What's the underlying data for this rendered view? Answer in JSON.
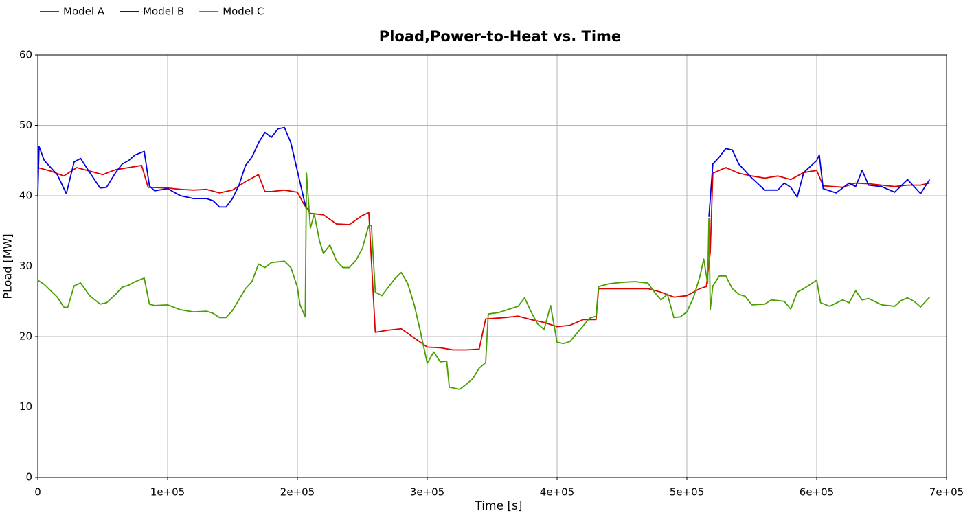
{
  "chart_data": {
    "type": "line",
    "title": "Pload,Power-to-Heat vs. Time",
    "x_label": "Time [s]",
    "y_label": "PLoad [MW]",
    "xlim": [
      0,
      700000
    ],
    "ylim": [
      0,
      60
    ],
    "xticks": [
      0,
      {
        "value": 100000,
        "label": "1e+05"
      },
      {
        "value": 200000,
        "label": "2e+05"
      },
      {
        "value": 300000,
        "label": "3e+05"
      },
      {
        "value": 400000,
        "label": "4e+05"
      },
      {
        "value": 500000,
        "label": "5e+05"
      },
      {
        "value": 600000,
        "label": "6e+05"
      },
      {
        "value": 700000,
        "label": "7e+05"
      }
    ],
    "yticks": [
      0,
      10,
      20,
      30,
      40,
      50,
      60
    ],
    "grid": true,
    "legend": "top-left",
    "series": [
      {
        "name": "Model A",
        "color": "#e00000",
        "x": [
          0,
          10000,
          20000,
          30000,
          40000,
          50000,
          60000,
          70000,
          80000,
          85000,
          100000,
          110000,
          120000,
          130000,
          140000,
          150000,
          160000,
          170000,
          175000,
          180000,
          190000,
          200000,
          205000,
          210000,
          220000,
          230000,
          240000,
          250000,
          255000,
          260000,
          270000,
          280000,
          290000,
          300000,
          310000,
          320000,
          330000,
          340000,
          345000,
          360000,
          370000,
          380000,
          390000,
          400000,
          410000,
          420000,
          430000,
          432000,
          450000,
          470000,
          480000,
          490000,
          500000,
          510000,
          515000,
          518000,
          520000,
          530000,
          540000,
          550000,
          560000,
          570000,
          580000,
          590000,
          600000,
          605000,
          620000,
          630000,
          640000,
          650000,
          660000,
          670000,
          680000,
          687000
        ],
        "values": [
          44,
          43.5,
          42.8,
          44,
          43.5,
          43,
          43.7,
          44,
          44.3,
          41.2,
          41.1,
          40.9,
          40.8,
          40.9,
          40.4,
          40.8,
          42,
          43,
          40.6,
          40.6,
          40.8,
          40.5,
          38.8,
          37.5,
          37.3,
          36,
          35.9,
          37.2,
          37.6,
          20.6,
          20.9,
          21.1,
          19.8,
          18.5,
          18.4,
          18.1,
          18.1,
          18.2,
          22.5,
          22.7,
          22.9,
          22.4,
          22,
          21.4,
          21.6,
          22.4,
          22.4,
          26.8,
          26.8,
          26.8,
          26.3,
          25.6,
          25.8,
          26.8,
          27.1,
          32,
          43.2,
          44,
          43.2,
          42.8,
          42.5,
          42.8,
          42.3,
          43.3,
          43.6,
          41.4,
          41.2,
          41.8,
          41.7,
          41.5,
          41.3,
          41.5,
          41.5,
          41.8
        ]
      },
      {
        "name": "Model B",
        "color": "#0000e0",
        "x": [
          0,
          1000,
          5000,
          15000,
          22000,
          28000,
          33000,
          40000,
          48000,
          53000,
          60000,
          65000,
          70000,
          75000,
          82000,
          86000,
          90000,
          100000,
          110000,
          120000,
          130000,
          135000,
          140000,
          145000,
          150000,
          155000,
          160000,
          165000,
          170000,
          175000,
          180000,
          185000,
          190000,
          195000,
          200000,
          205000,
          207000,
          210000,
          517000,
          520000,
          525000,
          530000,
          535000,
          540000,
          550000,
          560000,
          570000,
          575000,
          580000,
          585000,
          590000,
          600000,
          602000,
          605000,
          615000,
          625000,
          630000,
          635000,
          640000,
          650000,
          660000,
          670000,
          680000,
          687000
        ],
        "values": [
          40,
          47,
          45,
          43,
          40.3,
          44.8,
          45.3,
          43.3,
          41.1,
          41.2,
          43.3,
          44.5,
          45,
          45.8,
          46.3,
          41.4,
          40.7,
          41,
          40,
          39.6,
          39.6,
          39.3,
          38.4,
          38.4,
          39.6,
          41.5,
          44.3,
          45.5,
          47.5,
          49,
          48.3,
          49.5,
          49.7,
          47.5,
          43.5,
          39.5,
          38,
          null,
          37,
          44.5,
          45.5,
          46.7,
          46.5,
          44.5,
          42.5,
          40.8,
          40.8,
          41.8,
          41.2,
          39.8,
          43.3,
          45,
          45.8,
          41,
          40.4,
          41.8,
          41.3,
          43.6,
          41.5,
          41.3,
          40.5,
          42.3,
          40.3,
          42.3
        ]
      },
      {
        "name": "Model C",
        "color": "#4a9e00",
        "x": [
          0,
          5000,
          10000,
          15000,
          20000,
          23000,
          28000,
          33000,
          40000,
          48000,
          53000,
          60000,
          65000,
          70000,
          75000,
          82000,
          86000,
          90000,
          100000,
          110000,
          120000,
          130000,
          135000,
          140000,
          145000,
          150000,
          160000,
          165000,
          170000,
          175000,
          180000,
          190000,
          195000,
          200000,
          202000,
          206000,
          207000,
          210000,
          213000,
          217000,
          220000,
          225000,
          230000,
          235000,
          240000,
          245000,
          250000,
          255000,
          257000,
          260000,
          265000,
          270000,
          275000,
          280000,
          285000,
          290000,
          295000,
          300000,
          305000,
          310000,
          315000,
          317000,
          325000,
          330000,
          335000,
          340000,
          345000,
          347000,
          355000,
          365000,
          370000,
          375000,
          380000,
          385000,
          390000,
          395000,
          400000,
          405000,
          410000,
          420000,
          425000,
          430000,
          432000,
          440000,
          450000,
          460000,
          470000,
          475000,
          480000,
          485000,
          490000,
          495000,
          500000,
          505000,
          510000,
          513000,
          516000,
          517000,
          518000,
          520000,
          525000,
          530000,
          535000,
          540000,
          545000,
          550000,
          560000,
          565000,
          575000,
          580000,
          585000,
          590000,
          600000,
          603000,
          610000,
          620000,
          625000,
          630000,
          635000,
          640000,
          650000,
          660000,
          665000,
          670000,
          675000,
          680000,
          687000
        ],
        "values": [
          28,
          27.4,
          26.5,
          25.6,
          24.2,
          24.1,
          27.2,
          27.6,
          25.8,
          24.6,
          24.8,
          26,
          27,
          27.3,
          27.8,
          28.3,
          24.6,
          24.4,
          24.5,
          23.8,
          23.5,
          23.6,
          23.3,
          22.7,
          22.7,
          23.7,
          26.8,
          27.8,
          30.3,
          29.8,
          30.5,
          30.7,
          29.8,
          27,
          24.5,
          22.8,
          43.2,
          35.4,
          37.4,
          33.6,
          31.8,
          33,
          30.8,
          29.8,
          29.8,
          30.8,
          32.5,
          35.8,
          35.8,
          26.3,
          25.8,
          27,
          28.2,
          29.1,
          27.5,
          24.5,
          20.5,
          16.2,
          17.8,
          16.4,
          16.5,
          12.8,
          12.5,
          13.2,
          14,
          15.5,
          16.3,
          23.2,
          23.4,
          24,
          24.3,
          25.5,
          23.5,
          21.8,
          21,
          24.4,
          19.2,
          19,
          19.3,
          21.5,
          22.6,
          22.9,
          27.1,
          27.5,
          27.7,
          27.8,
          27.6,
          26.3,
          25.2,
          26,
          22.7,
          22.8,
          23.5,
          25.5,
          28.5,
          31,
          27.5,
          36.8,
          23.8,
          27.2,
          28.6,
          28.6,
          26.8,
          26,
          25.7,
          24.5,
          24.6,
          25.2,
          25,
          23.9,
          26.3,
          26.8,
          28,
          24.8,
          24.3,
          25.2,
          24.8,
          26.5,
          25.2,
          25.4,
          24.5,
          24.3,
          25.1,
          25.5,
          25,
          24.2,
          25.6
        ]
      }
    ]
  }
}
